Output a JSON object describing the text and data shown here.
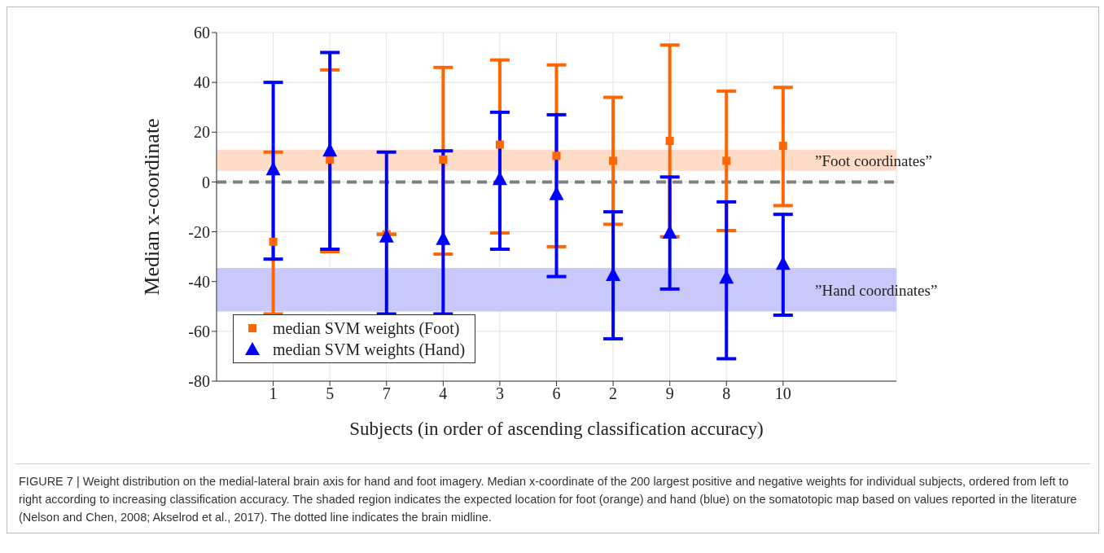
{
  "chart_data": {
    "type": "scatter",
    "xlabel": "Subjects (in order of ascending classification accuracy)",
    "ylabel": "Median x-coordinate",
    "categories": [
      "1",
      "5",
      "7",
      "4",
      "3",
      "6",
      "2",
      "9",
      "8",
      "10"
    ],
    "series": [
      {
        "name": "median SVM weights (Foot)",
        "color": "#ff6600",
        "marker": "square",
        "values": [
          -24,
          9,
          -21,
          9,
          15,
          10.5,
          8.5,
          16.5,
          8.5,
          14.5
        ],
        "errors": [
          [
            -53,
            12
          ],
          [
            -28,
            45
          ],
          null,
          [
            -29,
            46
          ],
          [
            -20.5,
            49
          ],
          [
            -26,
            47
          ],
          [
            -17,
            34
          ],
          [
            -22,
            55
          ],
          [
            -19.5,
            36.5
          ],
          [
            -9.5,
            38
          ]
        ]
      },
      {
        "name": "median SVM weights (Hand)",
        "color": "#0000ff",
        "marker": "triangle",
        "values": [
          5,
          12.5,
          -22,
          -23,
          1,
          -5,
          -37.5,
          -20.5,
          -38.5,
          -33
        ],
        "errors": [
          [
            -31,
            40
          ],
          [
            -27,
            52
          ],
          [
            -53,
            12
          ],
          [
            -53,
            12.5
          ],
          [
            -27,
            28
          ],
          [
            -38,
            27
          ],
          [
            -63,
            -12
          ],
          [
            -43,
            2
          ],
          [
            -71,
            -8
          ],
          [
            -53.5,
            -13
          ]
        ]
      }
    ],
    "ylim": [
      -80,
      60
    ],
    "yticks": [
      -80,
      -60,
      -40,
      -20,
      0,
      20,
      40,
      60
    ],
    "grid": true,
    "legend": "bottom left",
    "bands": [
      {
        "axis": "y",
        "from": 4.5,
        "to": 13,
        "label": "”Foot coordinates”",
        "color": "#ffdcc8"
      },
      {
        "axis": "y",
        "from": -52,
        "to": -34.5,
        "label": "”Hand coordinates”",
        "color": "#c8c8fa"
      }
    ],
    "ref_lines": [
      {
        "axis": "y",
        "value": 0,
        "color": "#808080",
        "line_style": "dashed"
      }
    ],
    "annotations": [
      "FIGURE 7 | Weight distribution on the medial-lateral brain axis for hand and foot imagery. Median x-coordinate of the 200 largest positive and negative weights for individual subjects, ordered from left to right according to increasing classification accuracy. The shaded region indicates the expected location for foot (orange) and hand (blue) on the somatotopic map based on values reported in the literature (Nelson and Chen, 2008; Akselrod et al., 2017). The dotted line indicates the brain midline."
    ]
  }
}
